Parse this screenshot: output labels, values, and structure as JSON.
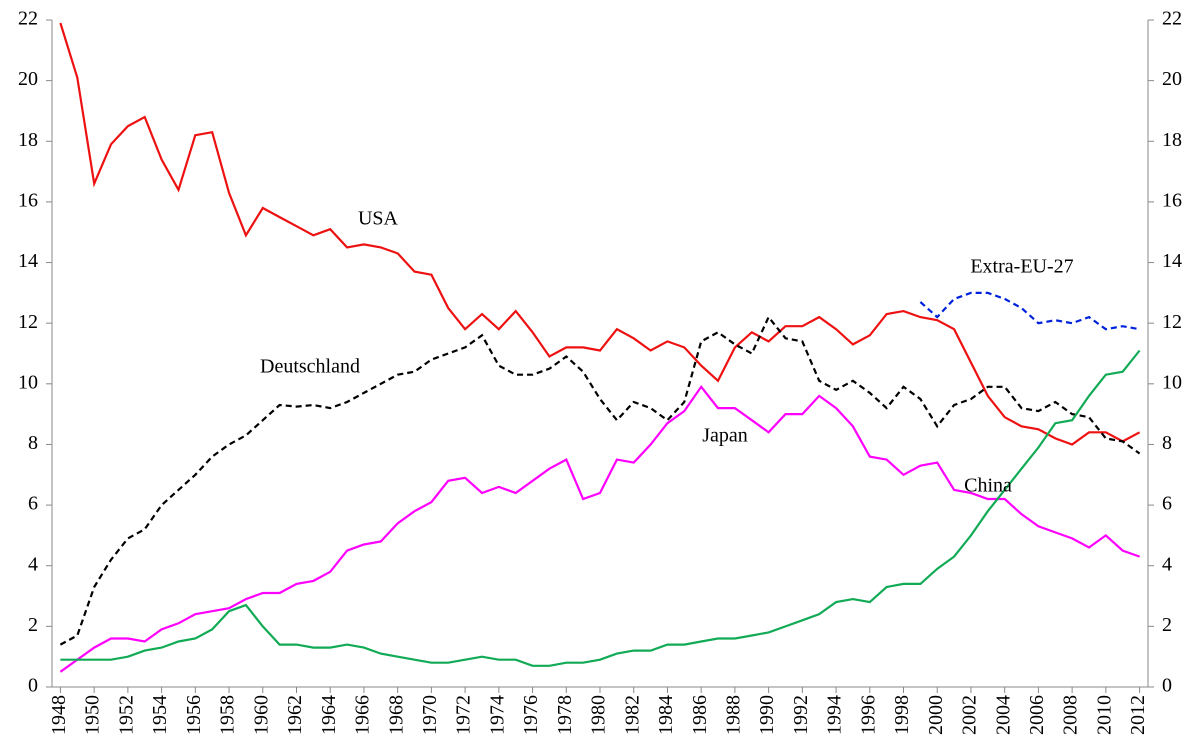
{
  "chart_data": {
    "type": "line",
    "x": [
      1948,
      1949,
      1950,
      1951,
      1952,
      1953,
      1954,
      1955,
      1956,
      1957,
      1958,
      1959,
      1960,
      1961,
      1962,
      1963,
      1964,
      1965,
      1966,
      1967,
      1968,
      1969,
      1970,
      1971,
      1972,
      1973,
      1974,
      1975,
      1976,
      1977,
      1978,
      1979,
      1980,
      1981,
      1982,
      1983,
      1984,
      1985,
      1986,
      1987,
      1988,
      1989,
      1990,
      1991,
      1992,
      1993,
      1994,
      1995,
      1996,
      1997,
      1998,
      1999,
      2000,
      2001,
      2002,
      2003,
      2004,
      2005,
      2006,
      2007,
      2008,
      2009,
      2010,
      2011,
      2012
    ],
    "xlim": [
      1947.5,
      2012.5
    ],
    "xticks": [
      1948,
      1950,
      1952,
      1954,
      1956,
      1958,
      1960,
      1962,
      1964,
      1966,
      1968,
      1970,
      1972,
      1974,
      1976,
      1978,
      1980,
      1982,
      1984,
      1986,
      1988,
      1990,
      1992,
      1994,
      1996,
      1998,
      2000,
      2002,
      2004,
      2006,
      2008,
      2010,
      2012
    ],
    "ylim": [
      0,
      22
    ],
    "yticks": [
      0,
      2,
      4,
      6,
      8,
      10,
      12,
      14,
      16,
      18,
      20,
      22
    ],
    "y2lim": [
      0,
      22
    ],
    "y2ticks": [
      0,
      2,
      4,
      6,
      8,
      10,
      12,
      14,
      16,
      18,
      20,
      22
    ],
    "grid": false,
    "series": [
      {
        "name": "USA",
        "color": "#ee1111",
        "dashed": false,
        "values": [
          21.9,
          20.1,
          16.6,
          17.9,
          18.5,
          18.8,
          17.4,
          16.4,
          18.2,
          18.3,
          16.3,
          14.9,
          15.8,
          15.5,
          15.2,
          14.9,
          15.1,
          14.5,
          14.6,
          14.5,
          14.3,
          13.7,
          13.6,
          12.5,
          11.8,
          12.3,
          11.8,
          12.4,
          11.7,
          10.9,
          11.2,
          11.2,
          11.1,
          11.8,
          11.5,
          11.1,
          11.4,
          11.2,
          10.6,
          10.1,
          11.2,
          11.7,
          11.4,
          11.9,
          11.9,
          12.2,
          11.8,
          11.3,
          11.6,
          12.3,
          12.4,
          12.2,
          12.1,
          11.8,
          10.7,
          9.6,
          8.9,
          8.6,
          8.5,
          8.2,
          8.0,
          8.4,
          8.4,
          8.1,
          8.4
        ]
      },
      {
        "name": "Deutschland",
        "color": "#000000",
        "dashed": true,
        "values": [
          1.4,
          1.7,
          3.3,
          4.2,
          4.9,
          5.2,
          6.0,
          6.5,
          7.0,
          7.6,
          8.0,
          8.3,
          8.8,
          9.3,
          9.25,
          9.3,
          9.2,
          9.4,
          9.7,
          10.0,
          10.3,
          10.4,
          10.8,
          11.0,
          11.2,
          11.6,
          10.6,
          10.3,
          10.3,
          10.5,
          10.9,
          10.4,
          9.5,
          8.8,
          9.4,
          9.2,
          8.8,
          9.4,
          11.4,
          11.7,
          11.3,
          11.0,
          12.2,
          11.5,
          11.4,
          10.1,
          9.8,
          10.1,
          9.7,
          9.2,
          9.9,
          9.5,
          8.6,
          9.3,
          9.5,
          9.9,
          9.9,
          9.2,
          9.1,
          9.4,
          9.0,
          8.9,
          8.2,
          8.1,
          7.7
        ]
      },
      {
        "name": "Japan",
        "color": "#ff00ff",
        "dashed": false,
        "values": [
          0.5,
          0.9,
          1.3,
          1.6,
          1.6,
          1.5,
          1.9,
          2.1,
          2.4,
          2.5,
          2.6,
          2.9,
          3.1,
          3.1,
          3.4,
          3.5,
          3.8,
          4.5,
          4.7,
          4.8,
          5.4,
          5.8,
          6.1,
          6.8,
          6.9,
          6.4,
          6.6,
          6.4,
          6.8,
          7.2,
          7.5,
          6.2,
          6.4,
          7.5,
          7.4,
          8.0,
          8.7,
          9.1,
          9.9,
          9.2,
          9.2,
          8.8,
          8.4,
          9.0,
          9.0,
          9.6,
          9.2,
          8.6,
          7.6,
          7.5,
          7.0,
          7.3,
          7.4,
          6.5,
          6.4,
          6.2,
          6.2,
          5.7,
          5.3,
          5.1,
          4.9,
          4.6,
          5.0,
          4.5,
          4.3
        ]
      },
      {
        "name": "China",
        "color": "#11aa55",
        "dashed": false,
        "values": [
          0.9,
          0.9,
          0.9,
          0.9,
          1.0,
          1.2,
          1.3,
          1.5,
          1.6,
          1.9,
          2.5,
          2.7,
          2.0,
          1.4,
          1.4,
          1.3,
          1.3,
          1.4,
          1.3,
          1.1,
          1.0,
          0.9,
          0.8,
          0.8,
          0.9,
          1.0,
          0.9,
          0.9,
          0.7,
          0.7,
          0.8,
          0.8,
          0.9,
          1.1,
          1.2,
          1.2,
          1.4,
          1.4,
          1.5,
          1.6,
          1.6,
          1.7,
          1.8,
          2.0,
          2.2,
          2.4,
          2.8,
          2.9,
          2.8,
          3.3,
          3.4,
          3.4,
          3.9,
          4.3,
          5.0,
          5.8,
          6.5,
          7.2,
          7.9,
          8.7,
          8.8,
          9.6,
          10.3,
          10.4,
          11.1
        ]
      },
      {
        "name": "Extra-EU-27",
        "color": "#0022dd",
        "dashed": true,
        "values": [
          null,
          null,
          null,
          null,
          null,
          null,
          null,
          null,
          null,
          null,
          null,
          null,
          null,
          null,
          null,
          null,
          null,
          null,
          null,
          null,
          null,
          null,
          null,
          null,
          null,
          null,
          null,
          null,
          null,
          null,
          null,
          null,
          null,
          null,
          null,
          null,
          null,
          null,
          null,
          null,
          null,
          null,
          null,
          null,
          null,
          null,
          null,
          null,
          null,
          null,
          null,
          12.7,
          12.2,
          12.8,
          13.0,
          13.0,
          12.8,
          12.5,
          12.0,
          12.1,
          12.0,
          12.2,
          11.8,
          11.9,
          11.8
        ]
      }
    ]
  }
}
